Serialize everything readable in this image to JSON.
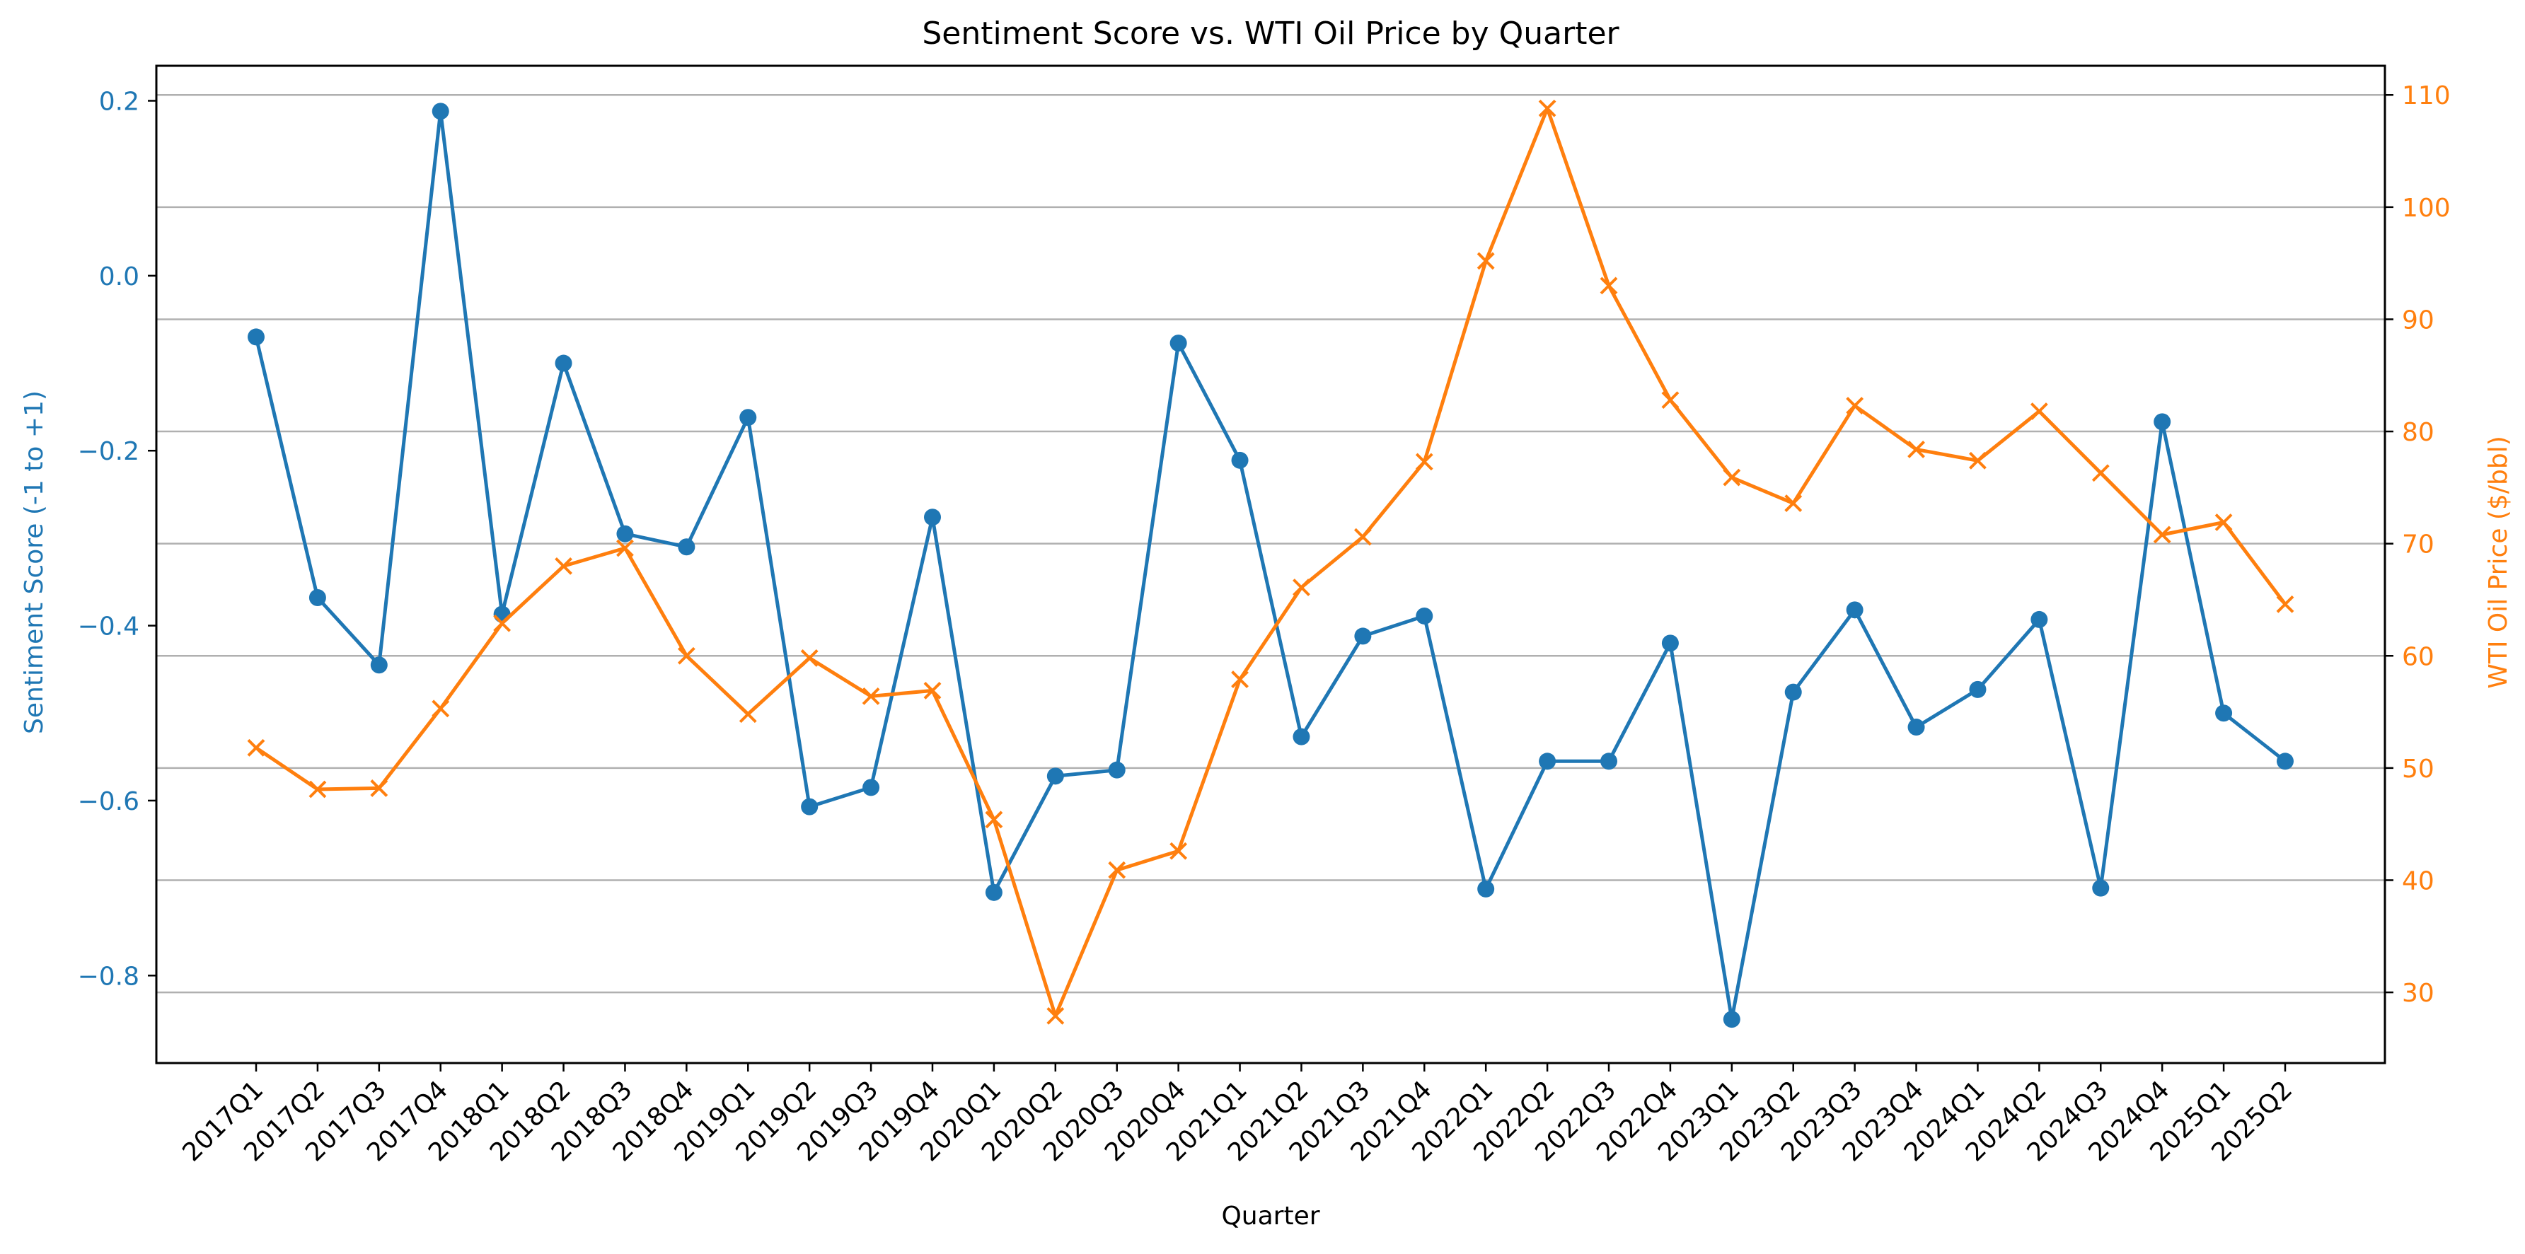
{
  "chart_data": {
    "type": "line",
    "title": "Sentiment Score vs. WTI Oil Price by Quarter",
    "xlabel": "Quarter",
    "categories": [
      "2017Q1",
      "2017Q2",
      "2017Q3",
      "2017Q4",
      "2018Q1",
      "2018Q2",
      "2018Q3",
      "2018Q4",
      "2019Q1",
      "2019Q2",
      "2019Q3",
      "2019Q4",
      "2020Q1",
      "2020Q2",
      "2020Q3",
      "2020Q4",
      "2021Q1",
      "2021Q2",
      "2021Q3",
      "2021Q4",
      "2022Q1",
      "2022Q2",
      "2022Q3",
      "2022Q4",
      "2023Q1",
      "2023Q2",
      "2023Q3",
      "2023Q4",
      "2024Q1",
      "2024Q2",
      "2024Q3",
      "2024Q4",
      "2025Q1",
      "2025Q2"
    ],
    "left_axis": {
      "label": "Sentiment Score (-1 to +1)",
      "ylim": [
        -0.9,
        0.24
      ],
      "ticks": [
        -0.8,
        -0.6,
        -0.4,
        -0.2,
        0.0,
        0.2
      ],
      "tick_labels": [
        "−0.8",
        "−0.6",
        "−0.4",
        "−0.2",
        "0.0",
        "0.2"
      ],
      "color": "#1f77b4"
    },
    "right_axis": {
      "label": "WTI Oil Price ($/bbl)",
      "ylim": [
        23.7,
        112.6
      ],
      "ticks": [
        30,
        40,
        50,
        60,
        70,
        80,
        90,
        100,
        110
      ],
      "tick_labels": [
        "30",
        "40",
        "50",
        "60",
        "70",
        "80",
        "90",
        "100",
        "110"
      ],
      "color": "#ff7f0e"
    },
    "grid": "horizontal, right axis ticks",
    "series": [
      {
        "axis": "left",
        "marker": "circle",
        "color": "#1f77b4",
        "values": [
          -0.07,
          -0.368,
          -0.445,
          0.188,
          -0.387,
          -0.1,
          -0.295,
          -0.31,
          -0.162,
          -0.607,
          -0.585,
          -0.276,
          -0.705,
          -0.572,
          -0.565,
          -0.077,
          -0.211,
          -0.527,
          -0.412,
          -0.389,
          -0.701,
          -0.555,
          -0.555,
          -0.42,
          -0.85,
          -0.476,
          -0.382,
          -0.516,
          -0.473,
          -0.393,
          -0.7,
          -0.167,
          -0.5,
          -0.555
        ]
      },
      {
        "axis": "right",
        "marker": "x",
        "color": "#ff7f0e",
        "values": [
          51.8,
          48.1,
          48.2,
          55.3,
          62.9,
          68.0,
          69.6,
          60.0,
          54.8,
          59.8,
          56.4,
          56.9,
          45.4,
          27.9,
          40.9,
          42.6,
          57.9,
          66.1,
          70.6,
          77.3,
          95.2,
          108.8,
          93.0,
          82.8,
          75.9,
          73.6,
          82.3,
          78.4,
          77.4,
          81.8,
          76.3,
          70.8,
          71.9,
          64.6
        ]
      }
    ]
  }
}
